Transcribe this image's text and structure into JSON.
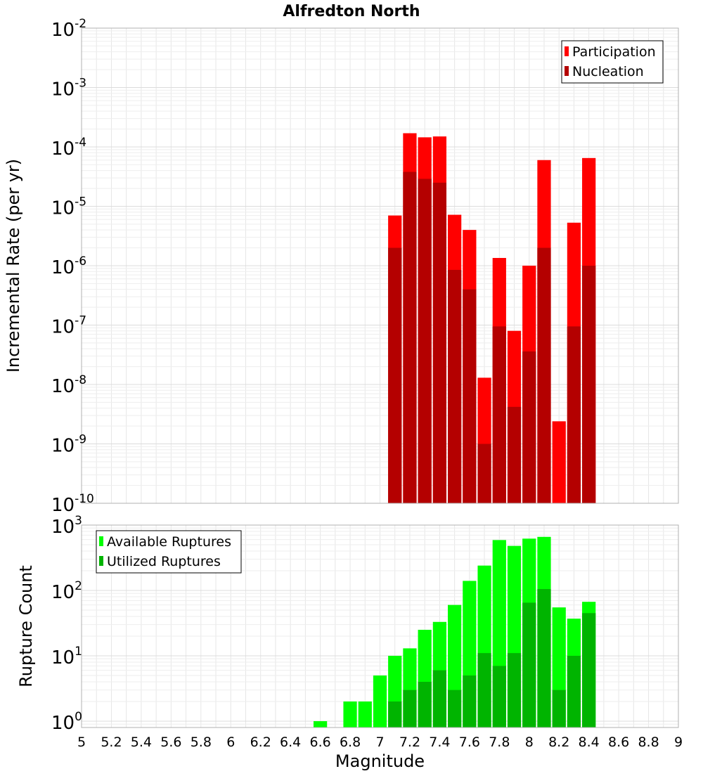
{
  "chart_data": [
    {
      "type": "bar",
      "title": "Alfredton North",
      "xlabel": "",
      "ylabel": "Incremental Rate (per yr)",
      "y_scale": "log",
      "ylim": [
        1e-10,
        0.01
      ],
      "xlim": [
        5,
        9
      ],
      "bin_width": 0.1,
      "grid": true,
      "legend_position": "top-right",
      "y_tick_labels": [
        {
          "base": "10",
          "exp": "-10"
        },
        {
          "base": "10",
          "exp": "-9"
        },
        {
          "base": "10",
          "exp": "-8"
        },
        {
          "base": "10",
          "exp": "-7"
        },
        {
          "base": "10",
          "exp": "-6"
        },
        {
          "base": "10",
          "exp": "-5"
        },
        {
          "base": "10",
          "exp": "-4"
        },
        {
          "base": "10",
          "exp": "-3"
        },
        {
          "base": "10",
          "exp": "-2"
        }
      ],
      "x": [
        7.1,
        7.2,
        7.3,
        7.4,
        7.5,
        7.6,
        7.7,
        7.8,
        7.9,
        8.0,
        8.1,
        8.2,
        8.3,
        8.4
      ],
      "series": [
        {
          "name": "Participation",
          "color": "#ff0000",
          "values": [
            7e-06,
            0.00017,
            0.000145,
            0.00015,
            7.2e-06,
            4e-06,
            1.3e-08,
            1.35e-06,
            8e-08,
            1e-06,
            6e-05,
            2.4e-09,
            5.3e-06,
            6.5e-05
          ]
        },
        {
          "name": "Nucleation",
          "color": "#b40000",
          "values": [
            2e-06,
            3.8e-05,
            2.9e-05,
            2.5e-05,
            8.5e-07,
            4e-07,
            1e-09,
            9.5e-08,
            4.2e-09,
            3.6e-08,
            2e-06,
            null,
            9.5e-08,
            1e-06
          ]
        }
      ]
    },
    {
      "type": "bar",
      "title": "",
      "xlabel": "Magnitude",
      "ylabel": "Rupture Count",
      "y_scale": "log",
      "ylim": [
        0.8,
        1000
      ],
      "xlim": [
        5,
        9
      ],
      "bin_width": 0.1,
      "grid": true,
      "legend_position": "top-left",
      "y_tick_labels": [
        {
          "base": "10",
          "exp": "0",
          "value": 1
        },
        {
          "base": "10",
          "exp": "1",
          "value": 10
        },
        {
          "base": "10",
          "exp": "2",
          "value": 100
        },
        {
          "base": "10",
          "exp": "3",
          "value": 1000
        }
      ],
      "x_tick_labels": [
        "5",
        "5.2",
        "5.4",
        "5.6",
        "5.8",
        "6",
        "6.2",
        "6.4",
        "6.6",
        "6.8",
        "7",
        "7.2",
        "7.4",
        "7.6",
        "7.8",
        "8",
        "8.2",
        "8.4",
        "8.6",
        "8.8",
        "9"
      ],
      "x": [
        6.6,
        6.8,
        6.9,
        7.0,
        7.1,
        7.2,
        7.3,
        7.4,
        7.5,
        7.6,
        7.7,
        7.8,
        7.9,
        8.0,
        8.1,
        8.2,
        8.3,
        8.4
      ],
      "series": [
        {
          "name": "Available Ruptures",
          "color": "#00ff00",
          "values": [
            1,
            2,
            2,
            5,
            10,
            13,
            25,
            33,
            60,
            140,
            240,
            590,
            480,
            620,
            660,
            55,
            37,
            67
          ]
        },
        {
          "name": "Utilized Ruptures",
          "color": "#00b400",
          "values": [
            null,
            null,
            null,
            null,
            2,
            3,
            4,
            6,
            3,
            5,
            11,
            7,
            11,
            65,
            105,
            3,
            10,
            45
          ]
        }
      ]
    }
  ]
}
